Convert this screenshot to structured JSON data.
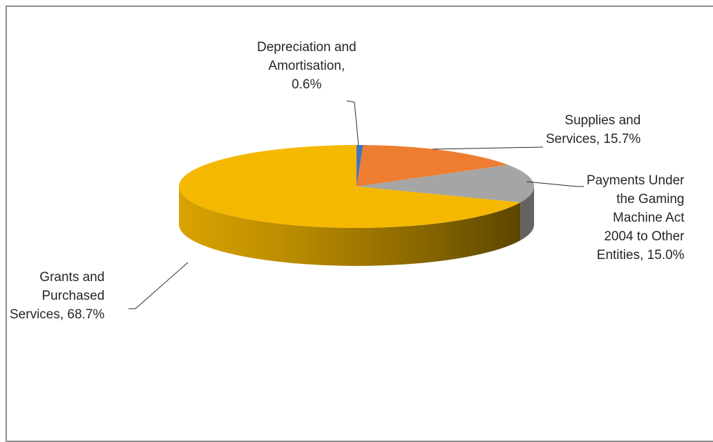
{
  "chart_data": {
    "type": "pie",
    "style": "3d",
    "title": "",
    "legend": "none",
    "slices": [
      {
        "label": "Depreciation and Amortisation",
        "value": 0.6,
        "display": "0.6%",
        "color": "#4472C4"
      },
      {
        "label": "Supplies and Services",
        "value": 15.7,
        "display": "15.7%",
        "color": "#ED7D31"
      },
      {
        "label": "Payments Under the Gaming Machine Act 2004 to Other Entities",
        "value": 15.0,
        "display": "15.0%",
        "color": "#A5A5A5"
      },
      {
        "label": "Grants and Purchased Services",
        "value": 68.7,
        "display": "68.7%",
        "color": "#F5B800"
      }
    ],
    "data_labels": [
      [
        "Depreciation and",
        "Amortisation,",
        "0.6%"
      ],
      [
        "Supplies and",
        "Services, 15.7%"
      ],
      [
        "Payments Under",
        "the Gaming",
        "Machine Act",
        "2004 to Other",
        "Entities, 15.0%"
      ],
      [
        "Grants and",
        "Purchased",
        "Services, 68.7%"
      ]
    ]
  }
}
